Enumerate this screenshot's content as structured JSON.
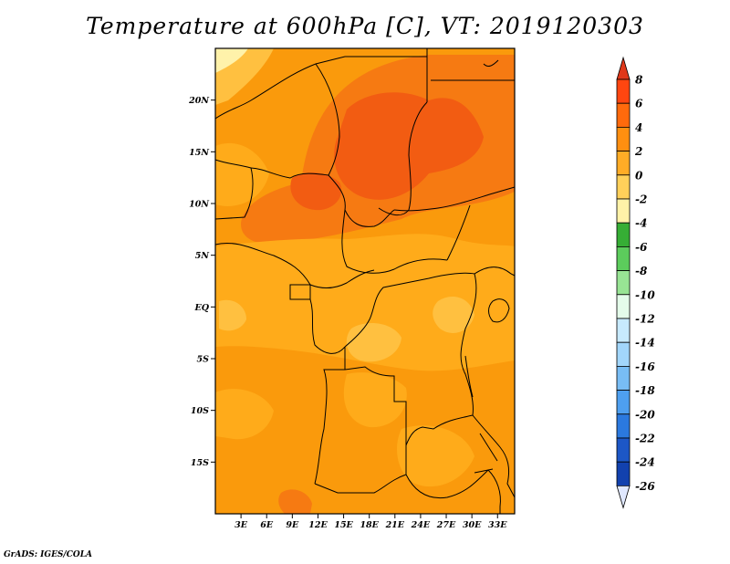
{
  "title": "Temperature at 600hPa [C], VT: 2019120303",
  "credit": "GrADS: IGES/COLA",
  "map": {
    "lon_range": [
      0,
      35
    ],
    "lat_range": [
      -20,
      25
    ],
    "lon_ticks": [
      "3E",
      "6E",
      "9E",
      "12E",
      "15E",
      "18E",
      "21E",
      "24E",
      "27E",
      "30E",
      "33E"
    ],
    "lon_tick_values": [
      3,
      6,
      9,
      12,
      15,
      18,
      21,
      24,
      27,
      30,
      33
    ],
    "lat_ticks": [
      "20N",
      "15N",
      "10N",
      "5N",
      "EQ",
      "5S",
      "10S",
      "15S"
    ],
    "lat_tick_values": [
      20,
      15,
      10,
      5,
      0,
      -5,
      -10,
      -15
    ]
  },
  "colorbar": {
    "levels": [
      "8",
      "6",
      "4",
      "2",
      "0",
      "-2",
      "-4",
      "-6",
      "-8",
      "-10",
      "-12",
      "-14",
      "-16",
      "-18",
      "-20",
      "-22",
      "-24",
      "-26"
    ],
    "colors": [
      "#f01e12",
      "#ff4610",
      "#ff6a0c",
      "#ff8f10",
      "#ffac26",
      "#ffd05a",
      "#fff2a8",
      "#36ae35",
      "#5ccc5c",
      "#98e494",
      "#e4fcea",
      "#c7eafe",
      "#a2d6fb",
      "#78bdf5",
      "#4e9ff0",
      "#2b79df",
      "#1d57c6",
      "#1241ae",
      "#0c2e8e",
      "#e0e8ff"
    ],
    "top_arrow_color": "#e0381a",
    "bottom_arrow_color": "#e0e8ff"
  },
  "field_colors": {
    "t2_4": "#ffab1a",
    "t4_6": "#fa9a0c",
    "t6_8": "#f67a12",
    "t8": "#f25c12",
    "t0_2": "#ffc040",
    "tm2_0": "#fff2aa"
  }
}
